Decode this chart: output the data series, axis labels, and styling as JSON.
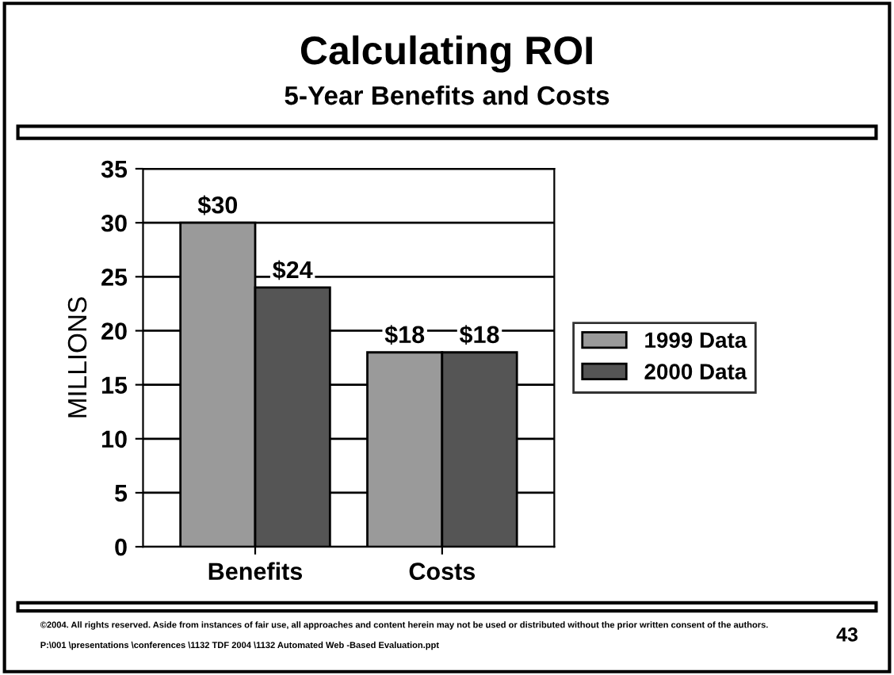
{
  "chart_data": {
    "type": "bar",
    "title": "Calculating ROI",
    "subtitle": "5-Year Benefits and Costs",
    "ylabel": "MILLIONS",
    "categories": [
      "Benefits",
      "Costs"
    ],
    "series": [
      {
        "name": "1999 Data",
        "color": "#9a9a9a",
        "values": [
          30,
          18
        ],
        "value_labels": [
          "$30",
          "$18"
        ]
      },
      {
        "name": "2000 Data",
        "color": "#555555",
        "values": [
          24,
          18
        ],
        "value_labels": [
          "$24",
          "$18"
        ]
      }
    ],
    "ylim": [
      0,
      35
    ],
    "yticks": [
      0,
      5,
      10,
      15,
      20,
      25,
      30,
      35
    ],
    "grid": "y",
    "legend": "right",
    "annotations": [
      "©2004. All rights reserved. Aside from instances of fair use, all approaches and content herein may not be used or distributed without the prior written consent of the authors.",
      "P:\\001 \\presentations \\conferences \\1132 TDF 2004 \\1132 Automated Web -Based Evaluation.ppt",
      "43"
    ]
  }
}
